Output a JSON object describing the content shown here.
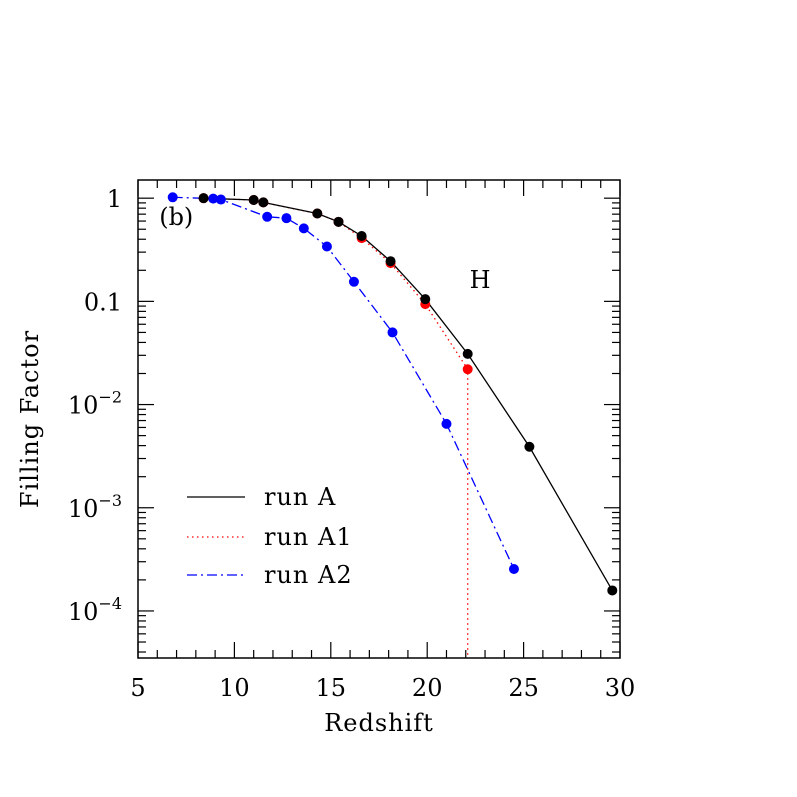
{
  "chart_data": {
    "type": "line",
    "xlabel": "Redshift",
    "ylabel": "Filling Factor",
    "xlim": [
      5,
      30
    ],
    "ylim": [
      3.5e-05,
      1.5
    ],
    "yscale": "log",
    "x_ticks": [
      {
        "value": 5,
        "label": "5"
      },
      {
        "value": 10,
        "label": "10"
      },
      {
        "value": 15,
        "label": "15"
      },
      {
        "value": 20,
        "label": "20"
      },
      {
        "value": 25,
        "label": "25"
      },
      {
        "value": 30,
        "label": "30"
      }
    ],
    "y_ticks": [
      {
        "value": 1,
        "base": "1",
        "exp": ""
      },
      {
        "value": 0.1,
        "base": "0.1",
        "exp": ""
      },
      {
        "value": 0.01,
        "base": "10",
        "exp": "−2"
      },
      {
        "value": 0.001,
        "base": "10",
        "exp": "−3"
      },
      {
        "value": 0.0001,
        "base": "10",
        "exp": "−4"
      }
    ],
    "annotations": [
      {
        "text": "(b)",
        "x": 6.1,
        "y": 0.55
      },
      {
        "text": "H",
        "x": 22.2,
        "y": 0.135
      }
    ],
    "legend_position": "bottom-left",
    "series": [
      {
        "name": "run A",
        "color": "#000000",
        "line_style": "solid",
        "points": [
          [
            8.4,
            1.0
          ],
          [
            11.0,
            0.96
          ],
          [
            11.5,
            0.91
          ],
          [
            14.3,
            0.71
          ],
          [
            15.4,
            0.59
          ],
          [
            16.6,
            0.43
          ],
          [
            18.1,
            0.245
          ],
          [
            19.9,
            0.105
          ],
          [
            22.1,
            0.031
          ],
          [
            25.3,
            0.0039
          ],
          [
            29.6,
            0.000158
          ]
        ]
      },
      {
        "name": "run A1",
        "color": "#ff0000",
        "line_style": "dotted",
        "points": [
          [
            8.4,
            1.0
          ],
          [
            11.0,
            0.96
          ],
          [
            11.5,
            0.91
          ],
          [
            14.3,
            0.71
          ],
          [
            15.4,
            0.59
          ],
          [
            16.6,
            0.41
          ],
          [
            18.1,
            0.235
          ],
          [
            19.9,
            0.094
          ],
          [
            22.1,
            0.022
          ],
          [
            22.1,
            3.5e-05
          ]
        ]
      },
      {
        "name": "run A2",
        "color": "#0000ff",
        "line_style": "dashdot",
        "points": [
          [
            6.8,
            1.02
          ],
          [
            8.9,
            0.99
          ],
          [
            9.3,
            0.97
          ],
          [
            11.7,
            0.66
          ],
          [
            12.7,
            0.64
          ],
          [
            13.6,
            0.51
          ],
          [
            14.8,
            0.34
          ],
          [
            16.2,
            0.155
          ],
          [
            18.2,
            0.05
          ],
          [
            21.0,
            0.0065
          ],
          [
            24.5,
            0.000255
          ]
        ]
      }
    ]
  }
}
